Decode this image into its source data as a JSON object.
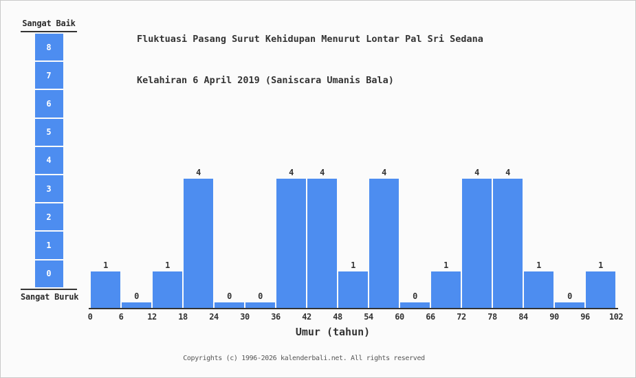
{
  "title": {
    "line1": "Fluktuasi Pasang Surut Kehidupan Menurut Lontar Pal Sri Sedana",
    "line2": "Kelahiran 6 April 2019 (Saniscara Umanis Bala)"
  },
  "scale": {
    "top_label": "Sangat Baik",
    "bottom_label": "Sangat Buruk",
    "levels": [
      "8",
      "7",
      "6",
      "5",
      "4",
      "3",
      "2",
      "1",
      "0"
    ]
  },
  "chart_data": {
    "type": "bar",
    "title": "Fluktuasi Pasang Surut Kehidupan Menurut Lontar Pal Sri Sedana Kelahiran 6 April 2019 (Saniscara Umanis Bala)",
    "xlabel": "Umur (tahun)",
    "ylabel": "",
    "ylim": [
      0,
      8
    ],
    "grid": false,
    "legend": "none",
    "scale_top_label": "Sangat Baik",
    "scale_bottom_label": "Sangat Buruk",
    "x_bin_edges": [
      0,
      6,
      12,
      18,
      24,
      30,
      36,
      42,
      48,
      54,
      60,
      66,
      72,
      78,
      84,
      90,
      96,
      102
    ],
    "categories": [
      "0-6",
      "6-12",
      "12-18",
      "18-24",
      "24-30",
      "30-36",
      "36-42",
      "42-48",
      "48-54",
      "54-60",
      "60-66",
      "66-72",
      "72-78",
      "78-84",
      "84-90",
      "90-96",
      "96-102"
    ],
    "values": [
      1,
      0,
      1,
      4,
      0,
      0,
      4,
      4,
      1,
      4,
      0,
      1,
      4,
      4,
      1,
      0,
      1
    ],
    "bar_color": "#4d8df0"
  },
  "colors": {
    "bar": "#4d8df0",
    "text": "#333333",
    "background": "#fbfbfb",
    "border": "#c9c9c9",
    "scale_number_text": "#ffffff"
  },
  "footer": {
    "text": "Copyrights (c) 1996-2026 kalenderbali.net. All rights reserved"
  }
}
